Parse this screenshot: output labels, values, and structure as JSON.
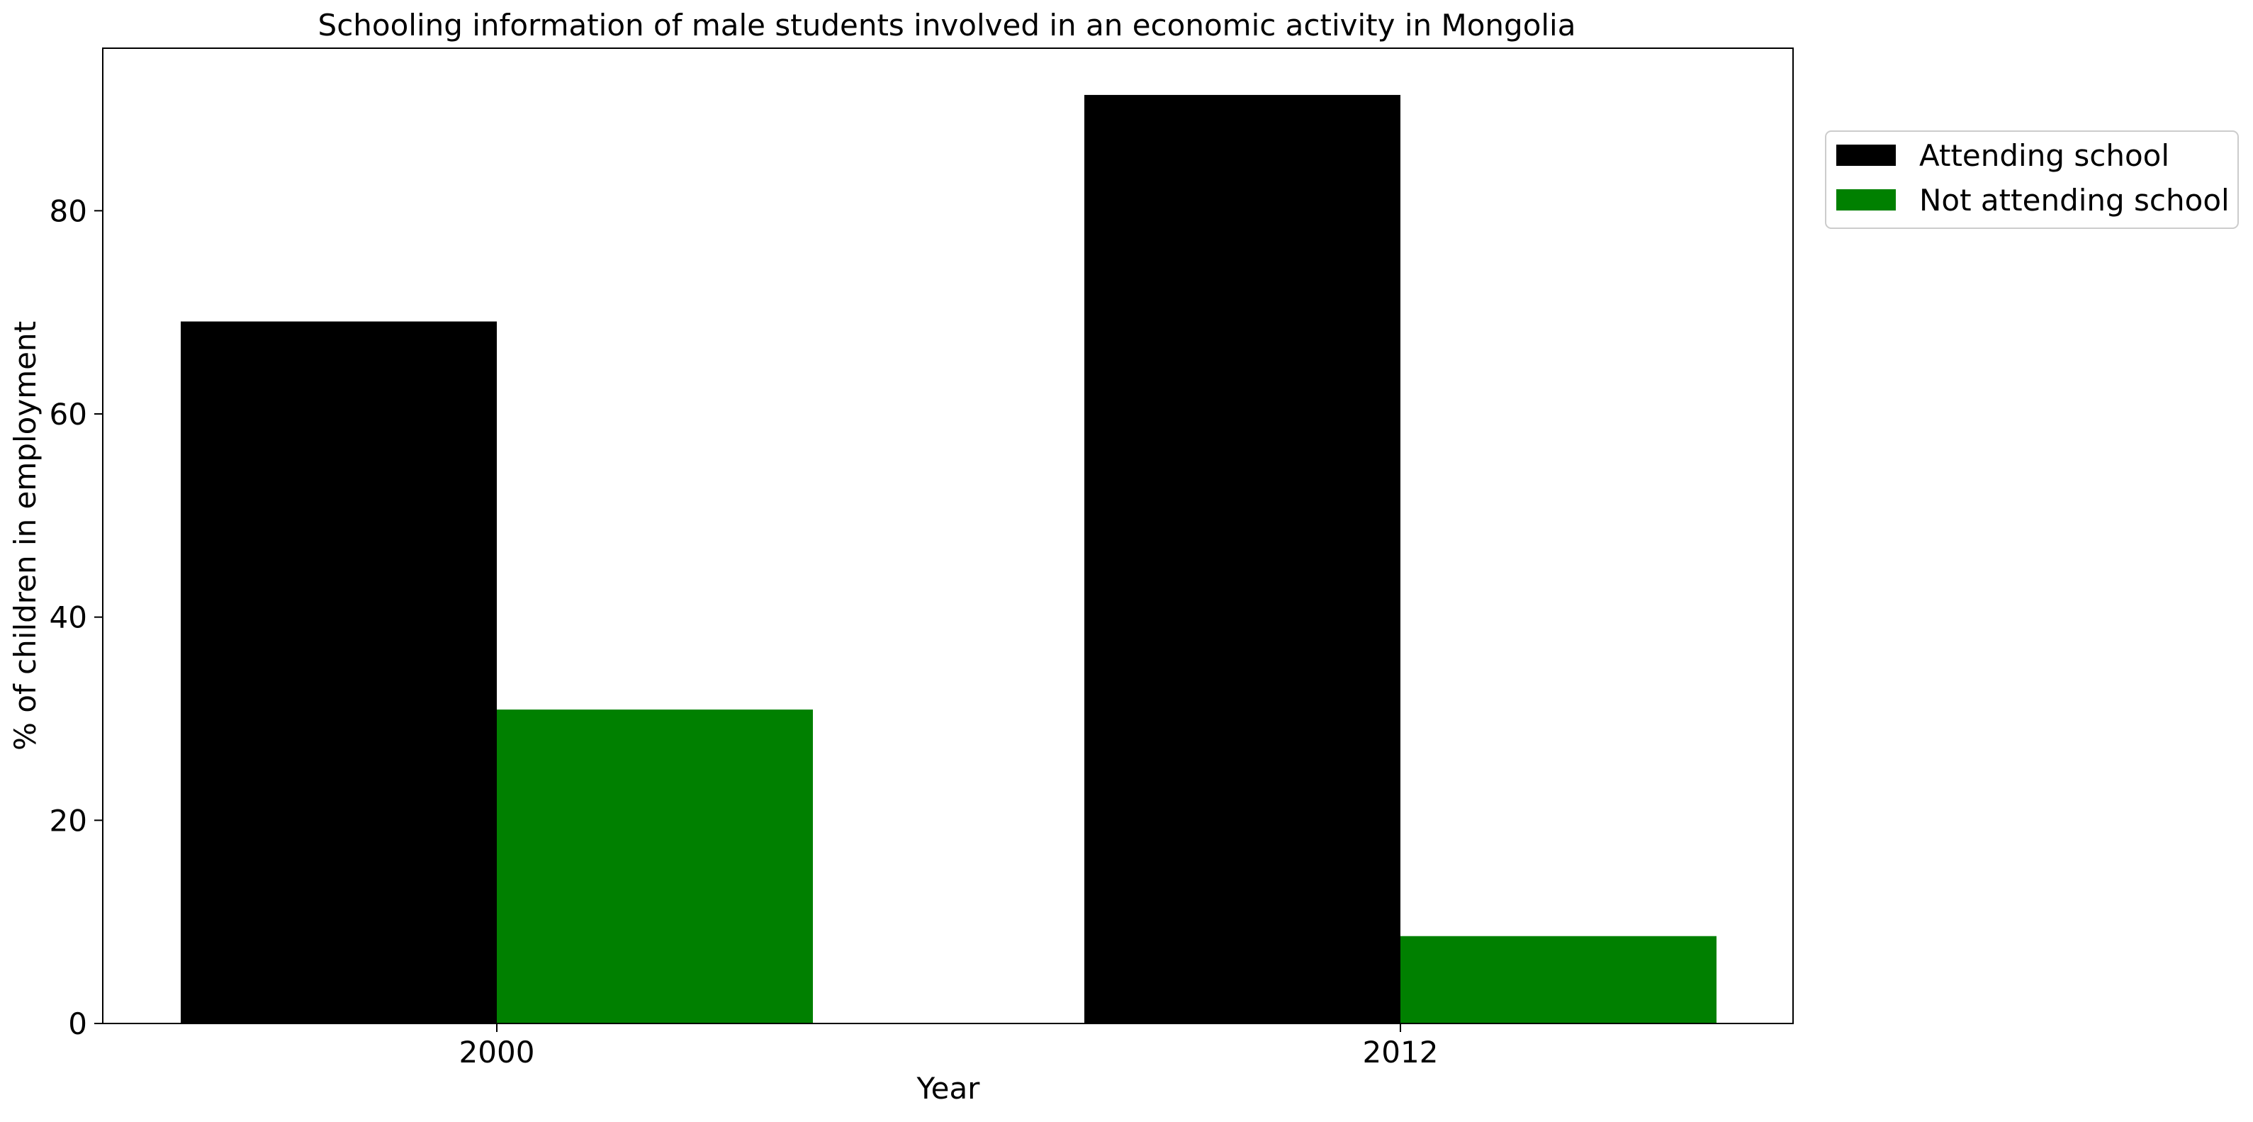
{
  "chart_data": {
    "type": "bar",
    "title": "Schooling information of male students involved in an economic activity in Mongolia",
    "xlabel": "Year",
    "ylabel": "% of children in employment",
    "categories": [
      "2000",
      "2012"
    ],
    "series": [
      {
        "name": "Attending school",
        "color": "#000000",
        "values": [
          69.1,
          91.4
        ]
      },
      {
        "name": "Not attending school",
        "color": "#008000",
        "values": [
          30.9,
          8.6
        ]
      }
    ],
    "ylim": [
      0,
      96
    ],
    "yticks": [
      0,
      20,
      40,
      60,
      80
    ],
    "grid": false,
    "legend_position": "outside-top-right"
  }
}
